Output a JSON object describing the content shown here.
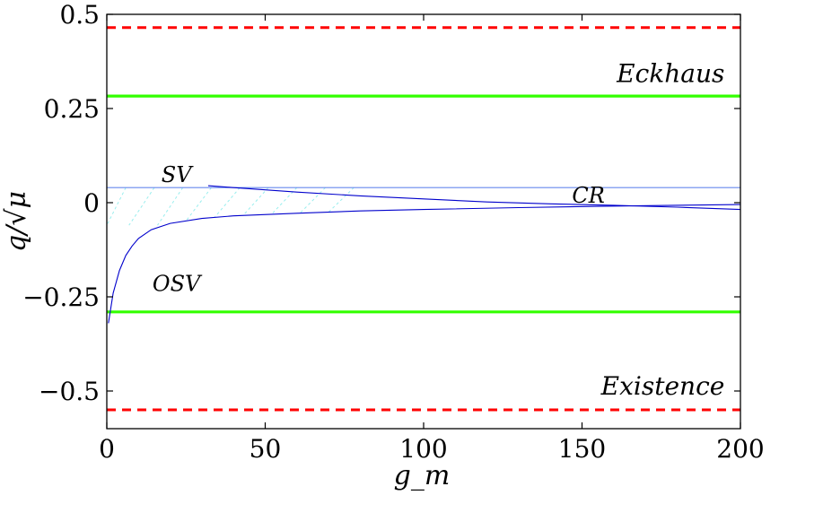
{
  "chart_data": {
    "type": "line",
    "title": "",
    "xlabel": "g_m",
    "ylabel": "q/√μ",
    "xlim": [
      0,
      200
    ],
    "ylim": [
      -0.6,
      0.5
    ],
    "x_ticks": [
      0,
      50,
      100,
      150,
      200
    ],
    "x_tick_labels": [
      "0",
      "50",
      "100",
      "150",
      "200"
    ],
    "y_ticks": [
      0.5,
      0.25,
      0,
      -0.25,
      -0.5
    ],
    "y_tick_labels": [
      "0.5",
      "0.25",
      "0",
      "−0.25",
      "−0.5"
    ],
    "grid": false,
    "series": [
      {
        "name": "",
        "style": "dashed",
        "color": "#ff0000",
        "x": [
          0,
          200
        ],
        "y": [
          0.465,
          0.465
        ]
      },
      {
        "name": "",
        "style": "solid",
        "color": "#33ff00",
        "x": [
          0,
          200
        ],
        "y": [
          0.283,
          0.283
        ]
      },
      {
        "name": "",
        "style": "solid",
        "color": "#33ff00",
        "x": [
          0,
          200
        ],
        "y": [
          -0.29,
          -0.29
        ]
      },
      {
        "name": "",
        "style": "dashed",
        "color": "#ff0000",
        "x": [
          0,
          200
        ],
        "y": [
          -0.55,
          -0.55
        ]
      },
      {
        "name": "",
        "style": "solid",
        "color": "#6688ee",
        "x": [
          0,
          200
        ],
        "y": [
          0.04,
          0.04
        ]
      },
      {
        "name": "",
        "style": "solid",
        "color": "#0000cc",
        "x": [
          32,
          40,
          60,
          80,
          100,
          120,
          140,
          160,
          180,
          200
        ],
        "y": [
          0.045,
          0.04,
          0.028,
          0.018,
          0.01,
          0.002,
          -0.003,
          -0.007,
          -0.012,
          -0.018
        ]
      },
      {
        "name": "",
        "style": "solid",
        "color": "#0000cc",
        "x": [
          0.5,
          2,
          4,
          6,
          8,
          10,
          14,
          20,
          30,
          40,
          60,
          80,
          100,
          130,
          160,
          200
        ],
        "y": [
          -0.32,
          -0.24,
          -0.18,
          -0.14,
          -0.115,
          -0.095,
          -0.072,
          -0.055,
          -0.042,
          -0.035,
          -0.028,
          -0.022,
          -0.018,
          -0.013,
          -0.009,
          -0.005
        ]
      }
    ],
    "annotations": [
      {
        "text": "Eckhaus",
        "x": 195,
        "y": 0.32
      },
      {
        "text": "Existence",
        "x": 195,
        "y": -0.51
      },
      {
        "text": "SV",
        "x": 22,
        "y": 0.055
      },
      {
        "text": "CR",
        "x": 152,
        "y": 0.0
      },
      {
        "text": "OSV",
        "x": 22,
        "y": -0.235
      }
    ],
    "hatch_region": {
      "color": "#99eeee",
      "x_range": [
        0,
        70
      ],
      "upper_y": 0.04
    }
  }
}
